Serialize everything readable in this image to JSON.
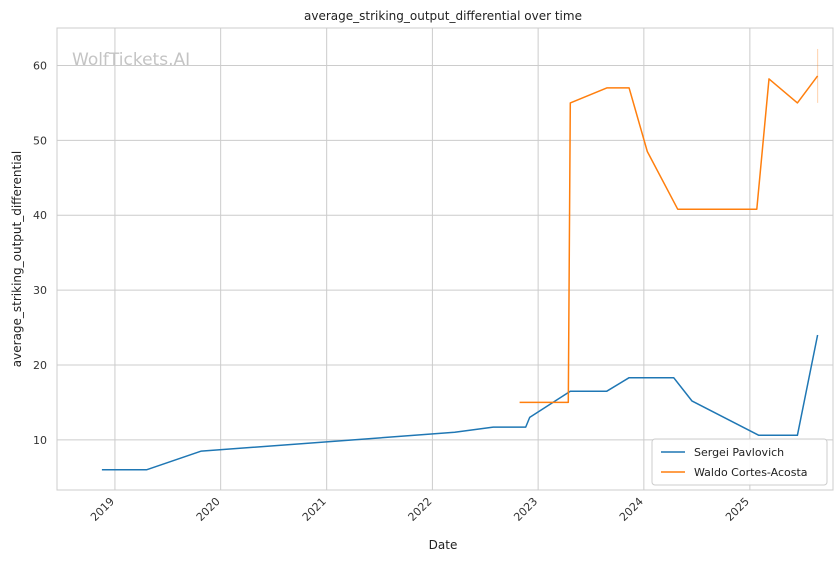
{
  "watermark": "WolfTickets.AI",
  "chart_data": {
    "type": "line",
    "title": "average_striking_output_differential over time",
    "xlabel": "Date",
    "ylabel": "average_striking_output_differential",
    "x_axis_type": "date",
    "xlim": [
      "2018-06-15",
      "2025-10-15"
    ],
    "ylim": [
      3.3,
      65
    ],
    "x_ticks": [
      {
        "date": "2019-01-01",
        "label": "2019"
      },
      {
        "date": "2020-01-01",
        "label": "2020"
      },
      {
        "date": "2021-01-01",
        "label": "2021"
      },
      {
        "date": "2022-01-01",
        "label": "2022"
      },
      {
        "date": "2023-01-01",
        "label": "2023"
      },
      {
        "date": "2024-01-01",
        "label": "2024"
      },
      {
        "date": "2025-01-01",
        "label": "2025"
      }
    ],
    "y_ticks": [
      10,
      20,
      30,
      40,
      50,
      60
    ],
    "grid": true,
    "legend_position": "lower-right",
    "series": [
      {
        "name": "Sergei Pavlovich",
        "color": "#1f77b4",
        "points": [
          {
            "x": "2018-11-17",
            "y": 6.0
          },
          {
            "x": "2019-04-20",
            "y": 6.0
          },
          {
            "x": "2019-10-26",
            "y": 8.5
          },
          {
            "x": "2022-03-19",
            "y": 11.0
          },
          {
            "x": "2022-07-30",
            "y": 11.7
          },
          {
            "x": "2022-11-19",
            "y": 11.7
          },
          {
            "x": "2022-12-03",
            "y": 13.0
          },
          {
            "x": "2023-04-22",
            "y": 16.5
          },
          {
            "x": "2023-08-26",
            "y": 16.5
          },
          {
            "x": "2023-11-11",
            "y": 18.3
          },
          {
            "x": "2024-04-13",
            "y": 18.3
          },
          {
            "x": "2024-06-15",
            "y": 15.2
          },
          {
            "x": "2025-02-01",
            "y": 10.6
          },
          {
            "x": "2025-06-14",
            "y": 10.6
          },
          {
            "x": "2025-08-23",
            "y": 24.0
          }
        ]
      },
      {
        "name": "Waldo Cortes-Acosta",
        "color": "#ff7f0e",
        "points": [
          {
            "x": "2022-10-29",
            "y": 15.0
          },
          {
            "x": "2023-04-15",
            "y": 15.0
          },
          {
            "x": "2023-04-22",
            "y": 55.0
          },
          {
            "x": "2023-08-26",
            "y": 57.0
          },
          {
            "x": "2023-11-11",
            "y": 57.0
          },
          {
            "x": "2024-01-13",
            "y": 48.5
          },
          {
            "x": "2024-04-27",
            "y": 40.8
          },
          {
            "x": "2025-01-25",
            "y": 40.8
          },
          {
            "x": "2025-03-08",
            "y": 58.2
          },
          {
            "x": "2025-06-14",
            "y": 55.0
          },
          {
            "x": "2025-08-23",
            "y": 58.6
          }
        ],
        "error_bar": {
          "x": "2025-08-23",
          "low": 55.0,
          "high": 62.2
        }
      }
    ]
  }
}
